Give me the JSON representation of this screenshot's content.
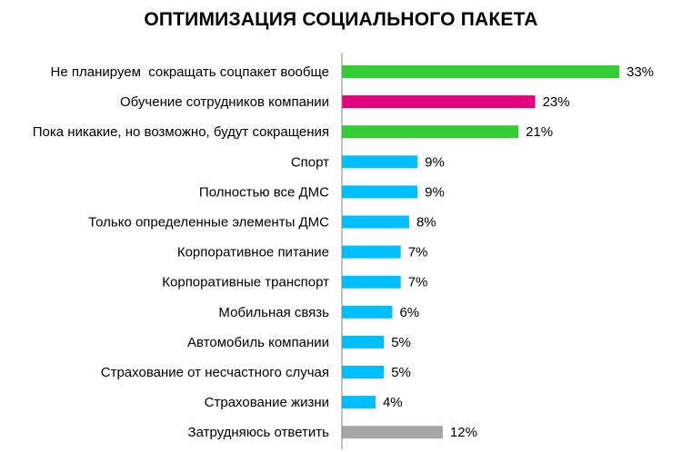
{
  "chart_data": {
    "type": "bar",
    "orientation": "horizontal",
    "title": "ОПТИМИЗАЦИЯ СОЦИАЛЬНОГО ПАКЕТА",
    "categories": [
      "Не планируем  сокращать соцпакет вообще",
      "Обучение сотрудников компании",
      "Пока никакие, но возможно, будут сокращения",
      "Спорт",
      "Полностью все ДМС",
      "Только определенные элементы ДМС",
      "Корпоративное питание",
      "Корпоративные транспорт",
      "Мобильная связь",
      "Автомобиль компании",
      "Страхование от несчастного случая",
      "Страхование жизни",
      "Затрудняюсь ответить"
    ],
    "values": [
      33,
      23,
      21,
      9,
      9,
      8,
      7,
      7,
      6,
      5,
      5,
      4,
      12
    ],
    "value_labels": [
      "33%",
      "23%",
      "21%",
      "9%",
      "9%",
      "8%",
      "7%",
      "7%",
      "6%",
      "5%",
      "5%",
      "4%",
      "12%"
    ],
    "bar_colors": [
      "#33cc33",
      "#e6007e",
      "#33cc33",
      "#00bfff",
      "#00bfff",
      "#00bfff",
      "#00bfff",
      "#00bfff",
      "#00bfff",
      "#00bfff",
      "#00bfff",
      "#00bfff",
      "#a6a6a6"
    ],
    "xlim": [
      0,
      33
    ],
    "grid": false,
    "legend": "none"
  }
}
